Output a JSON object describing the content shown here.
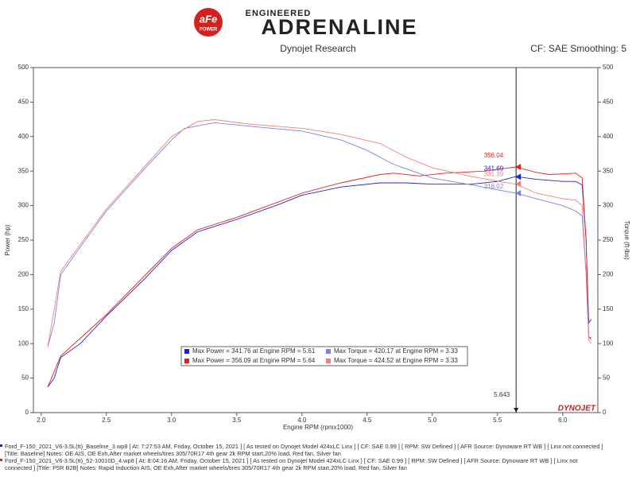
{
  "logo": {
    "top": "ENGINEERED",
    "main": "ADRENALINE",
    "badge": "aFe",
    "badge_sub": "POWER"
  },
  "chart_data": {
    "type": "line",
    "title": "Dynojet Research",
    "subtitle": "CF: SAE Smoothing: 5",
    "x_label": "Engine RPM (rpmx1000)",
    "y_label": "Power (hp)",
    "y2_label": "Torque (ft-lbs)",
    "brand": "DYNOJET",
    "xlim": [
      1.94,
      6.27
    ],
    "xticks": [
      {
        "value": 2,
        "label": "2.0"
      },
      2.5,
      {
        "value": 3,
        "label": "3.0"
      },
      3.5,
      {
        "value": 4,
        "label": "4.0"
      },
      4.5,
      {
        "value": 5,
        "label": "5.0"
      },
      5.5,
      {
        "value": 6,
        "label": "6.0"
      }
    ],
    "ylim": [
      0,
      500
    ],
    "yticks": [
      0,
      50,
      100,
      150,
      200,
      250,
      300,
      350,
      400,
      450,
      500
    ],
    "y2lim": [
      0,
      500
    ],
    "y2ticks": [
      0,
      50,
      100,
      150,
      200,
      250,
      300,
      350,
      400,
      450,
      500
    ],
    "series": [
      {
        "name": "Max Power = 341.76 at Engine RPM = 5.61",
        "color": "#2222cc",
        "x": [
          2.05,
          2.1,
          2.15,
          2.3,
          2.5,
          2.8,
          3.0,
          3.2,
          3.5,
          3.8,
          4.0,
          4.3,
          4.6,
          4.8,
          5.0,
          5.3,
          5.5,
          5.64,
          5.8,
          6.0,
          6.1,
          6.15,
          6.18,
          6.2,
          6.22
        ],
        "values": [
          37,
          50,
          80,
          100,
          140,
          195,
          235,
          262,
          280,
          300,
          315,
          327,
          333,
          333,
          331,
          331,
          335,
          342,
          338,
          335,
          335,
          330,
          250,
          130,
          135
        ]
      },
      {
        "name": "Max Power = 356.09 at Engine RPM = 5.64",
        "color": "#dd2222",
        "x": [
          2.05,
          2.15,
          2.5,
          3.0,
          3.2,
          3.5,
          4.0,
          4.3,
          4.6,
          4.7,
          4.9,
          5.1,
          5.4,
          5.64,
          5.8,
          5.9,
          6.0,
          6.1,
          6.15,
          6.18,
          6.2,
          6.22
        ],
        "values": [
          37,
          82,
          142,
          238,
          265,
          283,
          318,
          333,
          345,
          347,
          343,
          347,
          350,
          356,
          348,
          345,
          346,
          347,
          340,
          250,
          110,
          108
        ]
      },
      {
        "name": "Max Torque = 420.17 at Engine RPM = 3.33",
        "color": "#8080e0",
        "axis": "y2",
        "x": [
          2.05,
          2.1,
          2.15,
          2.3,
          2.5,
          2.8,
          3.0,
          3.1,
          3.33,
          3.6,
          4.0,
          4.3,
          4.5,
          4.7,
          5.0,
          5.3,
          5.64,
          5.8,
          6.0,
          6.1,
          6.15,
          6.18,
          6.2,
          6.22
        ],
        "values": [
          95,
          130,
          200,
          240,
          292,
          355,
          395,
          412,
          420,
          415,
          408,
          395,
          380,
          360,
          340,
          330,
          318,
          310,
          300,
          292,
          285,
          200,
          110,
          105
        ]
      },
      {
        "name": "Max Torque = 424.52 at Engine RPM = 3.33",
        "color": "#f08080",
        "axis": "y2",
        "x": [
          2.05,
          2.15,
          2.5,
          3.0,
          3.2,
          3.33,
          3.6,
          4.0,
          4.3,
          4.6,
          4.8,
          5.0,
          5.3,
          5.64,
          5.8,
          6.0,
          6.1,
          6.15,
          6.18,
          6.2,
          6.22
        ],
        "values": [
          95,
          205,
          295,
          400,
          422,
          424.5,
          418,
          412,
          403,
          390,
          370,
          355,
          342,
          331,
          318,
          310,
          308,
          300,
          200,
          105,
          100
        ]
      }
    ],
    "cursor": 5.643,
    "annotations": [
      {
        "value": 356.04,
        "color": "#dd2222"
      },
      {
        "value": 341.69,
        "color": "#2222cc"
      },
      {
        "value": 331.39,
        "color": "#f08080"
      },
      {
        "value": 318.02,
        "color": "#8080e0"
      }
    ]
  },
  "footer": [
    "Ford_F-150_2021_V6-3.5L(tt)_Baseline_3.wp8 [ At: 7:27:53 AM, Friday, October 15, 2021 ] [ As tested on Dynojet Model 424xLC Linx ] [ CF: SAE 0.99 ] [ RPM: SW Defined ] [ AFR Source: Dynoware RT WB ] [ Linx not connected ]",
    "[Title: Baseline]  Notes: OE AIS, OE Exh,After market wheels/tires 305/70R17 4th gear 2k RPM start,20% load, Red fan, Silver fan",
    "Ford_F-150_2021_V6-3.5L(tt)_52-10010D_4.wp8 [ At: 8:04:16 AM, Friday, October 15, 2021 ] [ As tested on Dynojet Model 424xLC Linx ] [ CF: SAE 0.99 ] [ RPM: SW Defined ] [ AFR Source: Dynoware RT WB ] [ Linx not",
    "connected ] [Title: P5R B2B]  Notes: Rapid Induction AIS, OE Exh,After market wheels/tires 305/70R17 4th gear 2k RPM start,20% load, Red fan, Silver fan"
  ]
}
